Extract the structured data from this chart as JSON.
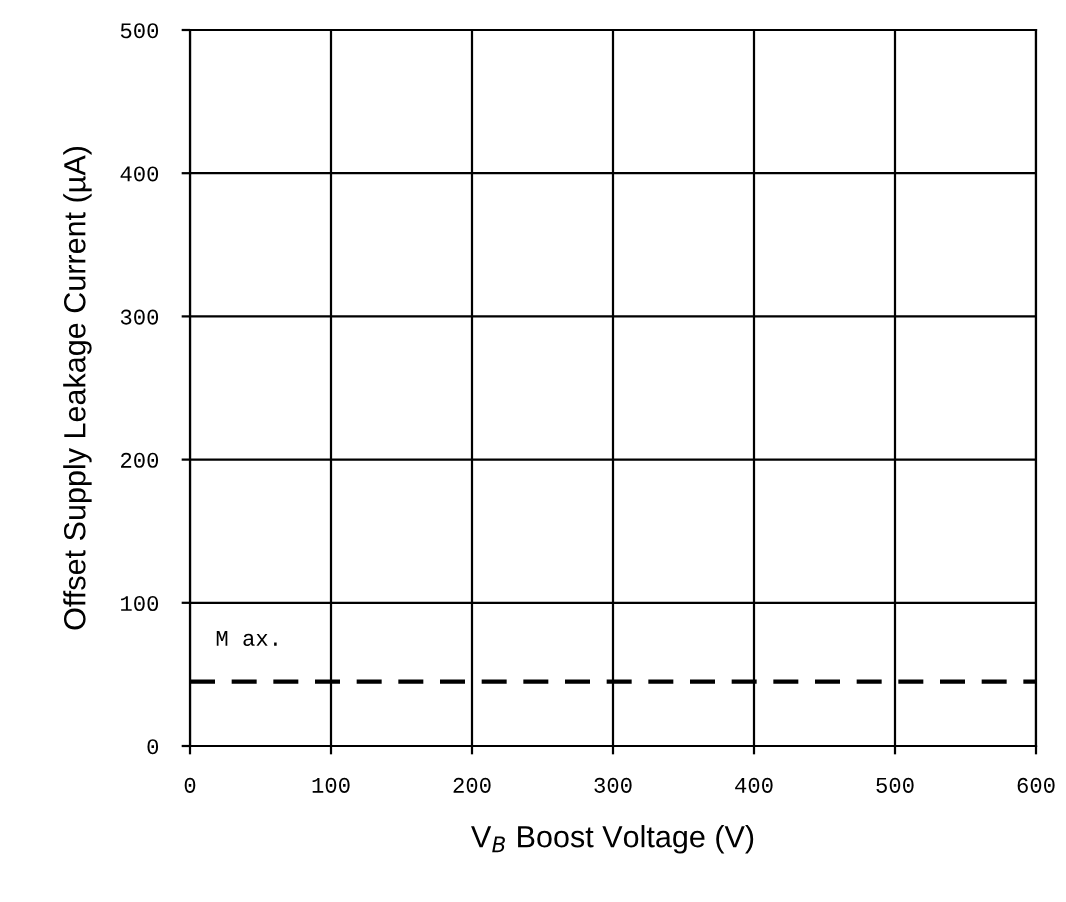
{
  "chart_data": {
    "type": "line",
    "xlabel": "V$_{B}$ Boost Voltage (V)",
    "ylabel": "Offset Supply Leakage Current (µA)",
    "series": [
      {
        "name": "M ax.",
        "color": "#000000",
        "x": [
          0,
          600
        ],
        "values": [
          45,
          45
        ]
      }
    ],
    "xlim": [
      0,
      600
    ],
    "xticks": [
      0,
      100,
      200,
      300,
      400,
      500,
      600
    ],
    "ylim": [
      0,
      500
    ],
    "yticks": [
      0,
      100,
      200,
      300,
      400,
      500
    ],
    "grid": true,
    "line_style": "dashed",
    "marker": "none"
  }
}
